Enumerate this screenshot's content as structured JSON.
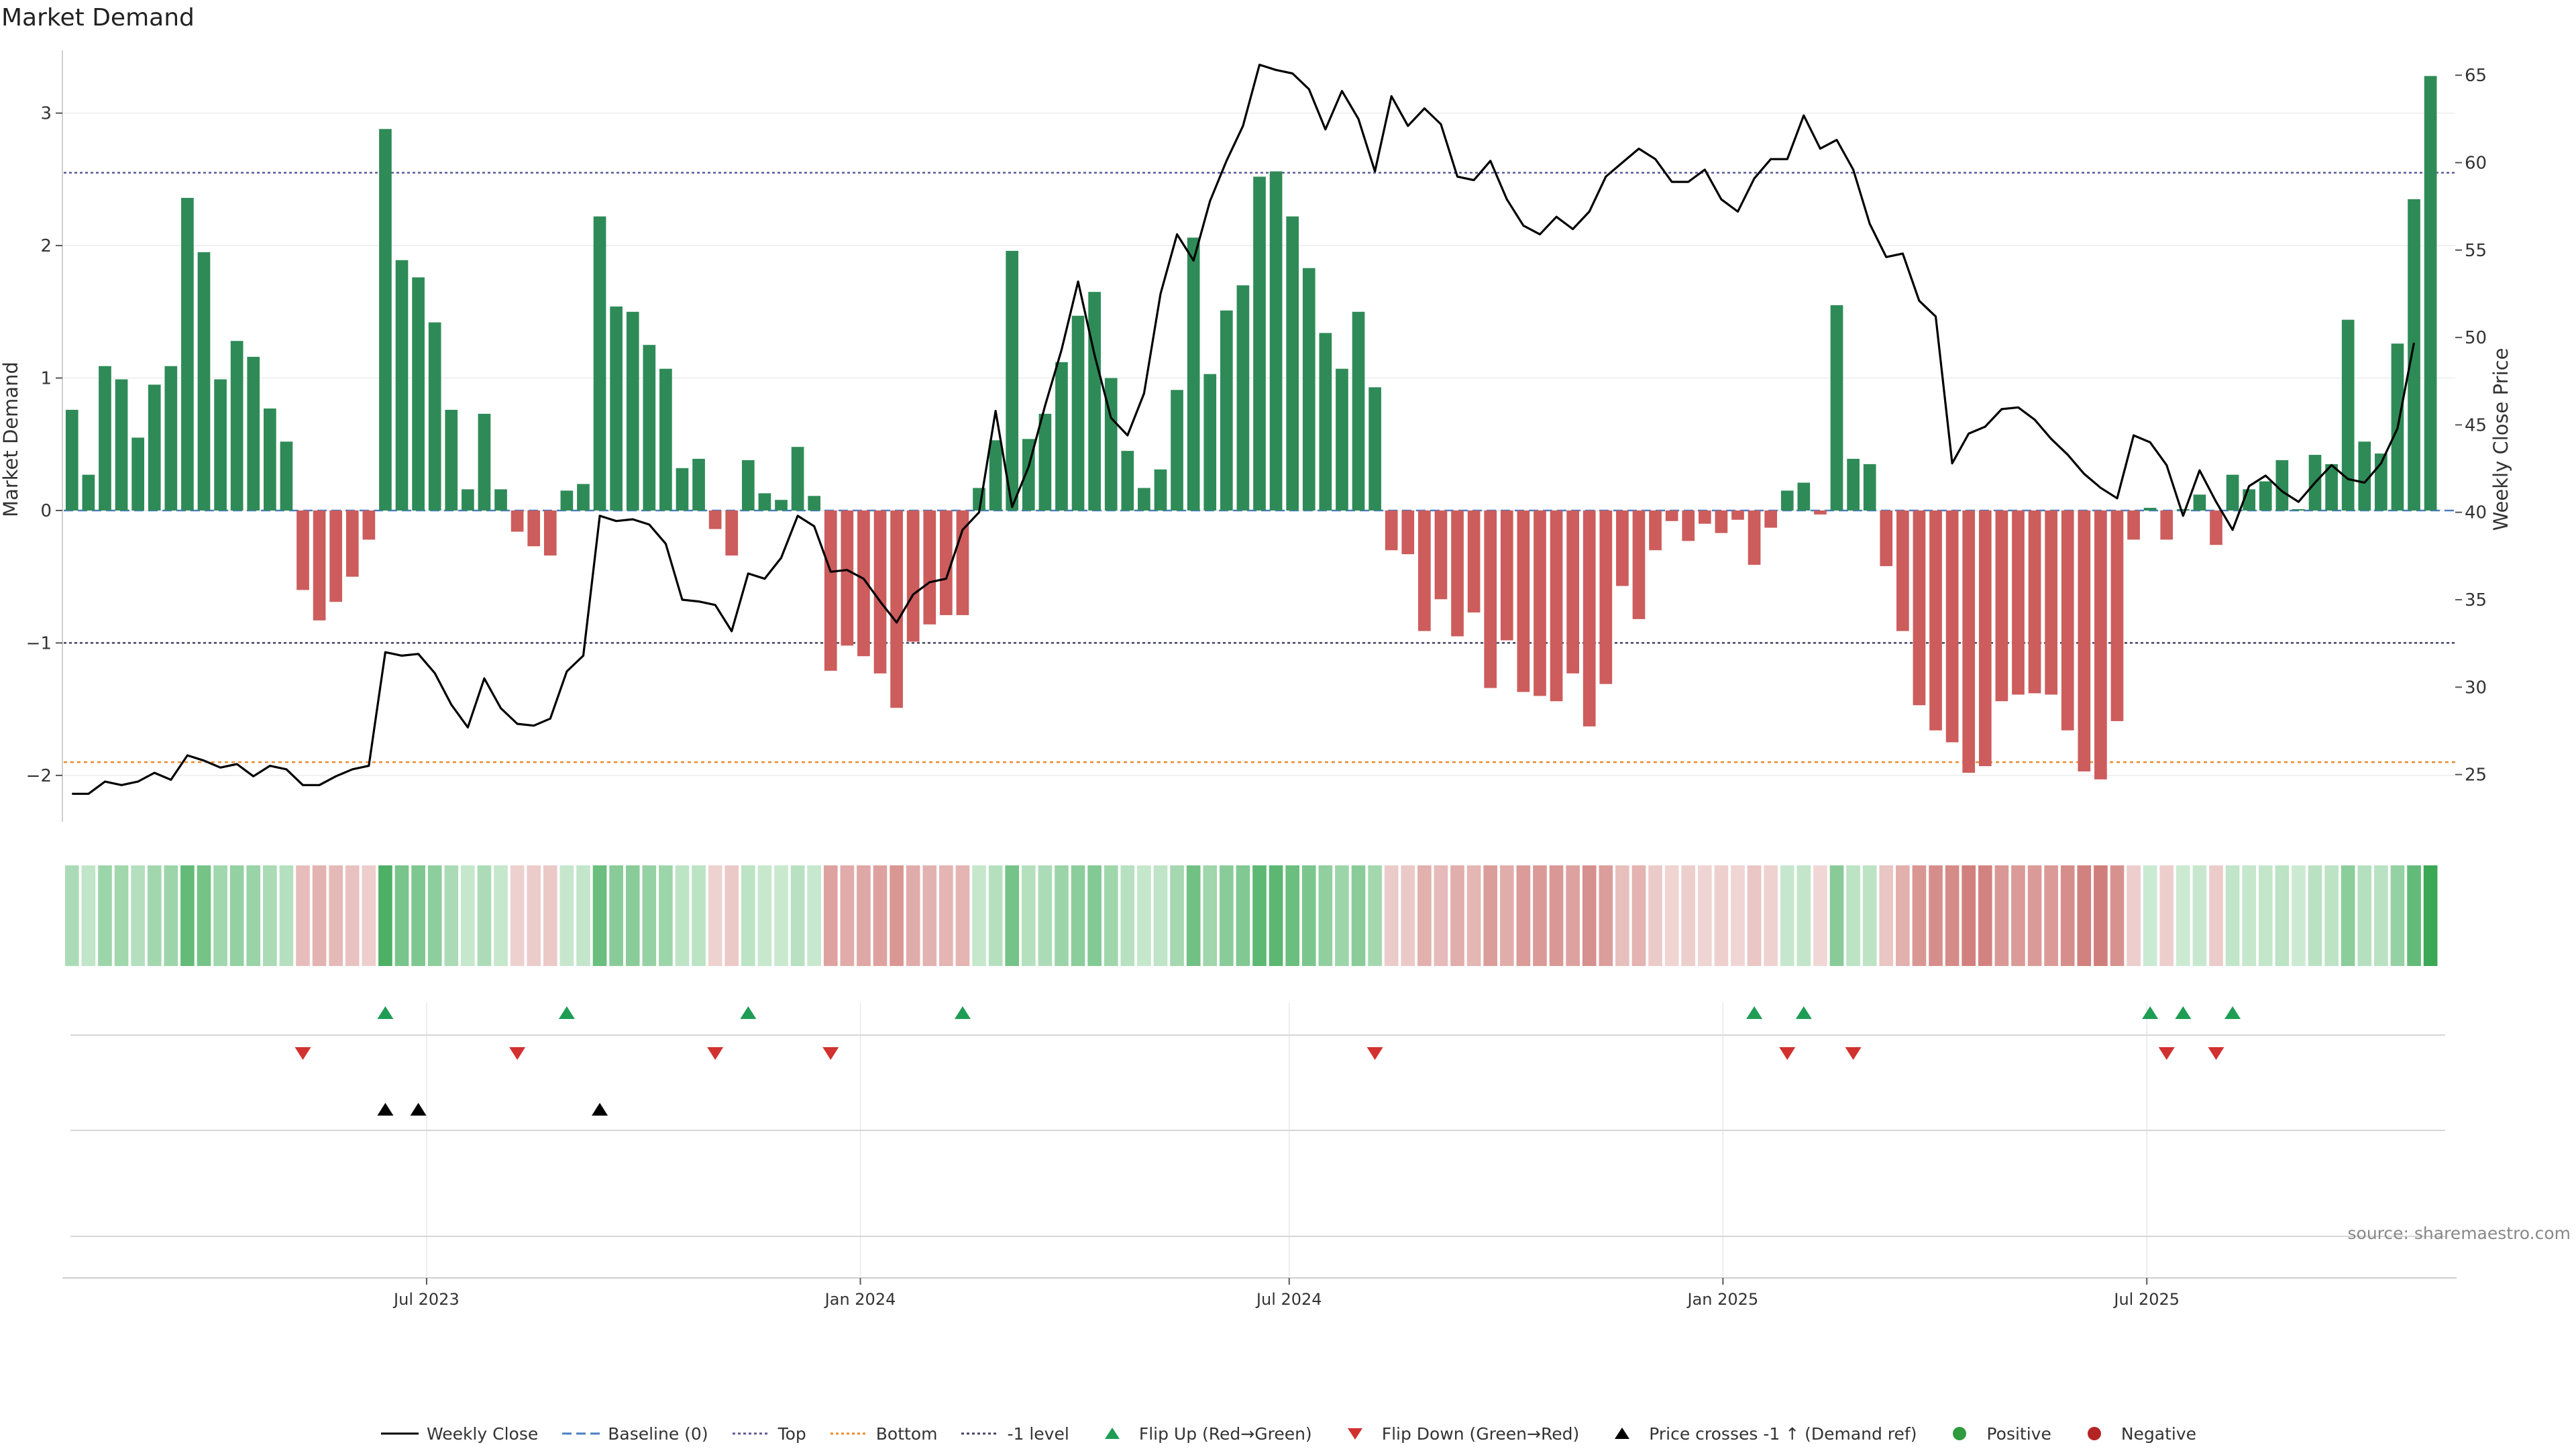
{
  "chart_data": {
    "type": "bar",
    "title": "Market Demand",
    "ylabel": "Market Demand",
    "y2label": "Weekly Close Price",
    "ylim": [
      -2.35,
      3.55
    ],
    "y2lim": [
      22.3,
      67.0
    ],
    "yticks": [
      -2,
      -1,
      0,
      1,
      2,
      3
    ],
    "ytick_labels": [
      "−2",
      "−1",
      "0",
      "1",
      "2",
      "3"
    ],
    "y2ticks": [
      25,
      30,
      35,
      40,
      45,
      50,
      55,
      60,
      65
    ],
    "x_start": "2023-01-01",
    "weeks": 145,
    "xticks": [
      {
        "label": "Jul 2023",
        "week": 22
      },
      {
        "label": "Jan 2024",
        "week": 48.3
      },
      {
        "label": "Jul 2024",
        "week": 74.3
      },
      {
        "label": "Jan 2025",
        "week": 100.6
      },
      {
        "label": "Jul 2025",
        "week": 126.3
      }
    ],
    "reference_lines": {
      "baseline": 0,
      "top": 2.55,
      "bottom": -1.9,
      "minus_one": -1
    },
    "series": [
      {
        "name": "Market Demand",
        "kind": "bar",
        "values": [
          0.76,
          0.27,
          1.09,
          0.99,
          0.55,
          0.95,
          1.09,
          2.36,
          1.95,
          0.99,
          1.28,
          1.16,
          0.77,
          0.52,
          -0.6,
          -0.83,
          -0.69,
          -0.5,
          -0.22,
          2.88,
          1.89,
          1.76,
          1.42,
          0.76,
          0.16,
          0.73,
          0.16,
          -0.16,
          -0.27,
          -0.34,
          0.15,
          0.2,
          2.22,
          1.54,
          1.5,
          1.25,
          1.07,
          0.32,
          0.39,
          -0.14,
          -0.34,
          0.38,
          0.13,
          0.08,
          0.48,
          0.11,
          -1.21,
          -1.02,
          -1.1,
          -1.23,
          -1.49,
          -0.99,
          -0.86,
          -0.79,
          -0.79,
          0.17,
          0.53,
          1.96,
          0.54,
          0.73,
          1.12,
          1.47,
          1.65,
          1.0,
          0.45,
          0.17,
          0.31,
          0.91,
          2.06,
          1.03,
          1.51,
          1.7,
          2.52,
          2.56,
          2.22,
          1.83,
          1.34,
          1.07,
          1.5,
          0.93,
          -0.3,
          -0.33,
          -0.91,
          -0.67,
          -0.95,
          -0.77,
          -1.34,
          -0.98,
          -1.37,
          -1.4,
          -1.44,
          -1.23,
          -1.63,
          -1.31,
          -0.57,
          -0.82,
          -0.3,
          -0.08,
          -0.23,
          -0.1,
          -0.17,
          -0.07,
          -0.41,
          -0.13,
          0.15,
          0.21,
          -0.03,
          1.55,
          0.39,
          0.35,
          -0.42,
          -0.91,
          -1.47,
          -1.66,
          -1.75,
          -1.98,
          -1.93,
          -1.44,
          -1.39,
          -1.38,
          -1.39,
          -1.66,
          -1.97,
          -2.03,
          -1.59,
          -0.22,
          0.02,
          -0.22,
          0.01,
          0.12,
          -0.26,
          0.27,
          0.16,
          0.22,
          0.38,
          0.01,
          0.42,
          0.35,
          1.44,
          0.52,
          0.43,
          1.26,
          2.35,
          3.28
        ]
      },
      {
        "name": "Weekly Close",
        "kind": "line",
        "axis": "y2",
        "values": [
          23.9,
          23.9,
          24.6,
          24.4,
          24.6,
          25.1,
          24.7,
          26.1,
          25.8,
          25.4,
          25.6,
          24.9,
          25.5,
          25.3,
          24.4,
          24.4,
          24.9,
          25.3,
          25.5,
          32.0,
          31.8,
          31.9,
          30.8,
          29.0,
          27.7,
          30.5,
          28.8,
          27.9,
          27.8,
          28.2,
          30.9,
          31.8,
          39.8,
          39.5,
          39.6,
          39.3,
          38.2,
          35.0,
          34.9,
          34.7,
          33.2,
          36.5,
          36.2,
          37.4,
          39.8,
          39.2,
          36.6,
          36.7,
          36.2,
          34.9,
          33.7,
          35.3,
          36.0,
          36.2,
          39.0,
          40.0,
          45.8,
          40.3,
          42.6,
          46.1,
          49.3,
          53.2,
          49.0,
          45.4,
          44.4,
          46.8,
          52.5,
          55.9,
          54.4,
          57.8,
          60.1,
          62.1,
          65.6,
          65.3,
          65.1,
          64.2,
          61.9,
          64.1,
          62.5,
          59.5,
          63.8,
          62.1,
          63.1,
          62.2,
          59.2,
          59.0,
          60.1,
          57.9,
          56.4,
          55.9,
          56.9,
          56.2,
          57.2,
          59.2,
          60.0,
          60.8,
          60.2,
          58.9,
          58.9,
          59.6,
          57.9,
          57.2,
          59.1,
          60.2,
          60.2,
          62.7,
          60.8,
          61.3,
          59.6,
          56.5,
          54.6,
          54.8,
          52.1,
          51.2,
          42.8,
          44.5,
          44.9,
          45.9,
          46.0,
          45.3,
          44.2,
          43.3,
          42.2,
          41.4,
          40.8,
          44.4,
          44.0,
          42.7,
          39.8,
          42.4,
          40.6,
          39.0,
          41.5,
          42.1,
          41.2,
          40.6,
          41.7,
          42.7,
          41.9,
          41.7,
          42.8,
          44.8,
          49.7
        ]
      },
      {
        "name": "Strength heat strip",
        "kind": "heatmap",
        "note": "colored by Market Demand sign and magnitude"
      }
    ],
    "events": {
      "flip_up_weeks": [
        19,
        30,
        41,
        54,
        102,
        105,
        126,
        128,
        131
      ],
      "flip_down_weeks": [
        14,
        27,
        39,
        46,
        79,
        104,
        108,
        127,
        130
      ],
      "price_cross_weeks": [
        19,
        21,
        32
      ]
    },
    "legend": [
      {
        "label": "Weekly Close",
        "marker": "line",
        "color": "#000000"
      },
      {
        "label": "Baseline (0)",
        "marker": "dash",
        "color": "#4a7fc1"
      },
      {
        "label": "Top",
        "marker": "dot",
        "color": "#5a5a9a"
      },
      {
        "label": "Bottom",
        "marker": "dot",
        "color": "#e98b2a"
      },
      {
        "label": "-1 level",
        "marker": "dot",
        "color": "#444466"
      },
      {
        "label": "Flip Up (Red→Green)",
        "marker": "tri-up",
        "color": "#1f9d55"
      },
      {
        "label": "Flip Down (Green→Red)",
        "marker": "tri-down",
        "color": "#d1312f"
      },
      {
        "label": "Price crosses -1 ↑ (Demand ref)",
        "marker": "tri-up",
        "color": "#000000"
      },
      {
        "label": "Positive",
        "marker": "circle",
        "color": "#2e9b3e"
      },
      {
        "label": "Negative",
        "marker": "circle",
        "color": "#b52424"
      }
    ],
    "source": "source: sharemaestro.com"
  },
  "colors": {
    "positive": "#2e8b57",
    "negative": "#cd5c5c",
    "price": "#000000",
    "baseline": "#4a7fc1",
    "top": "#5a5a9a",
    "bottom": "#e98b2a",
    "minus_one": "#444466",
    "flip_up": "#1f9d55",
    "flip_down": "#d1312f",
    "cross": "#000000"
  }
}
